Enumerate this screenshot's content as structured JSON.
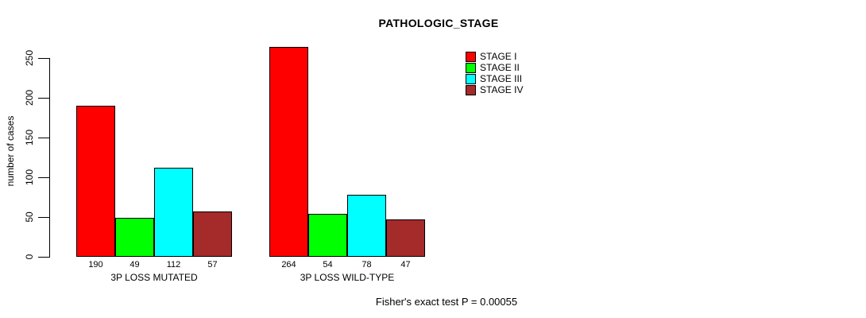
{
  "chart_data": {
    "type": "bar",
    "title": "PATHOLOGIC_STAGE",
    "ylabel": "number of cases",
    "xlabel": "",
    "ylim": [
      0,
      250
    ],
    "yticks": [
      0,
      50,
      100,
      150,
      200,
      250
    ],
    "grid": false,
    "legend_position": "top-right",
    "bar_value_labels_shown": true,
    "groups": [
      "3P LOSS MUTATED",
      "3P LOSS WILD-TYPE"
    ],
    "series": [
      {
        "name": "STAGE I",
        "color": "#ff0000",
        "values": [
          190,
          264
        ]
      },
      {
        "name": "STAGE II",
        "color": "#00ff00",
        "values": [
          49,
          54
        ]
      },
      {
        "name": "STAGE III",
        "color": "#00ffff",
        "values": [
          112,
          78
        ]
      },
      {
        "name": "STAGE IV",
        "color": "#a52a2a",
        "values": [
          57,
          47
        ]
      }
    ],
    "annotation": "Fisher's exact test P = 0.00055",
    "colors": {
      "background": "#ffffff",
      "axis": "#000000",
      "bar_border": "#000000"
    }
  }
}
